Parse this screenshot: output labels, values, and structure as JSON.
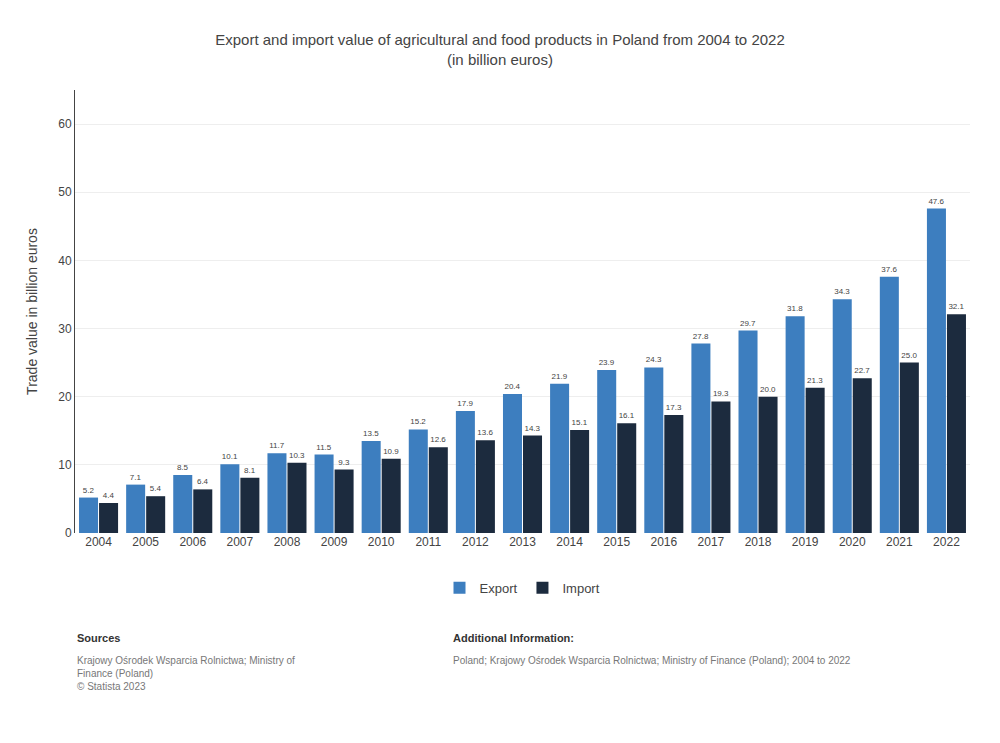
{
  "chart_data": {
    "type": "bar",
    "title": "Export and import value of agricultural and food products in Poland from 2004 to 2022",
    "subtitle": "(in billion euros)",
    "y_label": "Trade value in billion euros",
    "categories": [
      "2004",
      "2005",
      "2006",
      "2007",
      "2008",
      "2009",
      "2010",
      "2011",
      "2012",
      "2013",
      "2014",
      "2015",
      "2016",
      "2017",
      "2018",
      "2019",
      "2020",
      "2021",
      "2022"
    ],
    "series": [
      {
        "name": "Export",
        "color": "#3d7ebf",
        "values": [
          5.2,
          7.1,
          8.5,
          10.1,
          11.7,
          11.5,
          13.5,
          15.2,
          17.9,
          20.4,
          21.9,
          23.9,
          24.3,
          27.8,
          29.7,
          31.8,
          34.3,
          37.6,
          47.6
        ],
        "value_labels": [
          "5.2",
          "7.1",
          "8.5",
          "10.1",
          "11.7",
          "11.5",
          "13.5",
          "15.2",
          "17.9",
          "20.4",
          "21.9",
          "23.9",
          "24.3",
          "27.8",
          "29.7",
          "31.8",
          "34.3",
          "37.6",
          "47.6"
        ]
      },
      {
        "name": "Import",
        "color": "#1c2b3e",
        "values": [
          4.4,
          5.4,
          6.4,
          8.1,
          10.3,
          9.3,
          10.9,
          12.6,
          13.6,
          14.3,
          15.1,
          16.1,
          17.3,
          19.3,
          20.0,
          21.3,
          22.7,
          25.0,
          32.1
        ],
        "value_labels": [
          "4.4",
          "5.4",
          "6.4",
          "8.1",
          "10.3",
          "9.3",
          "10.9",
          "12.6",
          "13.6",
          "14.3",
          "15.1",
          "16.1",
          "17.3",
          "19.3",
          "20.0",
          "21.3",
          "22.7",
          "25.0",
          "32.1"
        ]
      }
    ],
    "ylim": [
      0,
      65
    ],
    "yticks": [
      0,
      10,
      20,
      30,
      40,
      50,
      60
    ],
    "grid": true,
    "legend": "bottom",
    "data_labels": true,
    "annotations": [
      "Sources",
      "Krajowy Ośrodek Wsparcia Rolnictwa; Ministry of\nFinance (Poland)\n© Statista 2023",
      "Additional Information:",
      "Poland; Krajowy Ośrodek Wsparcia Rolnictwa; Ministry of Finance (Poland); 2004 to 2022"
    ]
  }
}
